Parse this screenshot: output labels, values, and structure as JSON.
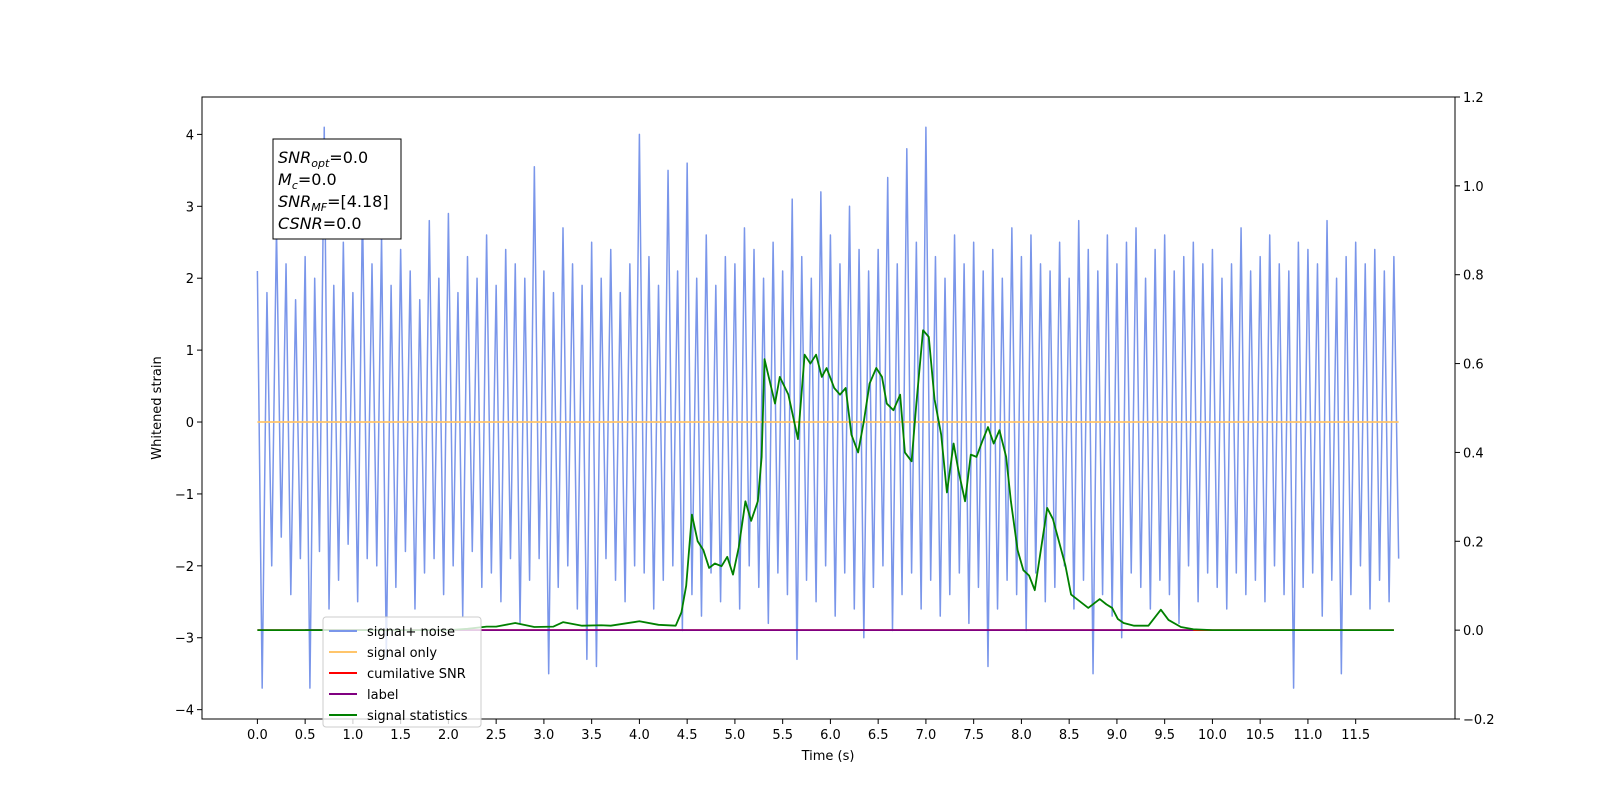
{
  "chart_data": {
    "type": "line",
    "xlabel": "Time (s)",
    "ylabel": "Whitened strain",
    "xlim": [
      -0.58,
      12.54
    ],
    "ylim": [
      -4.13,
      4.52
    ],
    "y2lim": [
      -0.2,
      1.2
    ],
    "xticks": [
      {
        "value": 0,
        "label": "0.0"
      },
      0.5,
      {
        "value": 1,
        "label": "1.0"
      },
      1.5,
      {
        "value": 2,
        "label": "2.0"
      },
      2.5,
      {
        "value": 3,
        "label": "3.0"
      },
      3.5,
      {
        "value": 4,
        "label": "4.0"
      },
      4.5,
      {
        "value": 5,
        "label": "5.0"
      },
      5.5,
      {
        "value": 6,
        "label": "6.0"
      },
      6.5,
      {
        "value": 7,
        "label": "7.0"
      },
      7.5,
      {
        "value": 8,
        "label": "8.0"
      },
      8.5,
      {
        "value": 9,
        "label": "9.0"
      },
      9.5,
      {
        "value": 10,
        "label": "10.0"
      },
      10.5,
      {
        "value": 11,
        "label": "11.0"
      },
      11.5
    ],
    "yticks": [
      {
        "value": -4,
        "label": "−4"
      },
      {
        "value": -3,
        "label": "−3"
      },
      {
        "value": -2,
        "label": "−2"
      },
      {
        "value": -1,
        "label": "−1"
      },
      0,
      1,
      2,
      3,
      4
    ],
    "y2ticks": [
      {
        "value": -0.2,
        "label": "−0.2"
      },
      {
        "value": 0,
        "label": "0.0"
      },
      0.2,
      0.4,
      0.6,
      0.8,
      {
        "value": 1,
        "label": "1.0"
      },
      1.2
    ],
    "legend": "lower left",
    "textbox": [
      {
        "base": "SNR",
        "sub": "opt",
        "rest": "=0.0"
      },
      {
        "base": "M",
        "sub": "c",
        "rest": "=0.0"
      },
      {
        "base": "SNR",
        "sub": "MF",
        "rest": "=[4.18]"
      },
      {
        "base": "CSNR",
        "rest": "=0.0"
      }
    ],
    "series": [
      {
        "name": "signal+ noise",
        "color": "#7a96ea",
        "x": [
          0,
          0.05,
          0.1,
          0.15,
          0.2,
          0.25,
          0.3,
          0.35,
          0.4,
          0.45,
          0.5,
          0.55,
          0.6,
          0.65,
          0.7,
          0.75,
          0.8,
          0.85,
          0.9,
          0.95,
          1,
          1.05,
          1.1,
          1.15,
          1.2,
          1.25,
          1.3,
          1.35,
          1.4,
          1.45,
          1.5,
          1.55,
          1.6,
          1.65,
          1.7,
          1.75,
          1.8,
          1.85,
          1.9,
          1.95,
          2,
          2.05,
          2.1,
          2.15,
          2.2,
          2.25,
          2.3,
          2.35,
          2.4,
          2.45,
          2.5,
          2.55,
          2.6,
          2.65,
          2.7,
          2.75,
          2.8,
          2.85,
          2.9,
          2.95,
          3,
          3.05,
          3.1,
          3.15,
          3.2,
          3.25,
          3.3,
          3.35,
          3.4,
          3.45,
          3.5,
          3.55,
          3.6,
          3.65,
          3.7,
          3.75,
          3.8,
          3.85,
          3.9,
          3.95,
          4,
          4.05,
          4.1,
          4.15,
          4.2,
          4.25,
          4.3,
          4.35,
          4.4,
          4.45,
          4.5,
          4.55,
          4.6,
          4.65,
          4.7,
          4.75,
          4.8,
          4.85,
          4.9,
          4.95,
          5,
          5.05,
          5.1,
          5.15,
          5.2,
          5.25,
          5.3,
          5.35,
          5.4,
          5.45,
          5.5,
          5.55,
          5.6,
          5.65,
          5.7,
          5.75,
          5.8,
          5.85,
          5.9,
          5.95,
          6,
          6.05,
          6.1,
          6.15,
          6.2,
          6.25,
          6.3,
          6.35,
          6.4,
          6.45,
          6.5,
          6.55,
          6.6,
          6.65,
          6.7,
          6.75,
          6.8,
          6.85,
          6.9,
          6.95,
          7,
          7.05,
          7.1,
          7.15,
          7.2,
          7.25,
          7.3,
          7.35,
          7.4,
          7.45,
          7.5,
          7.55,
          7.6,
          7.65,
          7.7,
          7.75,
          7.8,
          7.85,
          7.9,
          7.95,
          8,
          8.05,
          8.1,
          8.15,
          8.2,
          8.25,
          8.3,
          8.35,
          8.4,
          8.45,
          8.5,
          8.55,
          8.6,
          8.65,
          8.7,
          8.75,
          8.8,
          8.85,
          8.9,
          8.95,
          9,
          9.05,
          9.1,
          9.15,
          9.2,
          9.25,
          9.3,
          9.35,
          9.4,
          9.45,
          9.5,
          9.55,
          9.6,
          9.65,
          9.7,
          9.75,
          9.8,
          9.85,
          9.9,
          9.95,
          10,
          10.05,
          10.1,
          10.15,
          10.2,
          10.25,
          10.3,
          10.35,
          10.4,
          10.45,
          10.5,
          10.55,
          10.6,
          10.65,
          10.7,
          10.75,
          10.8,
          10.85,
          10.9,
          10.95,
          11,
          11.05,
          11.1,
          11.15,
          11.2,
          11.25,
          11.3,
          11.35,
          11.4,
          11.45,
          11.5,
          11.55,
          11.6,
          11.65,
          11.7,
          11.75,
          11.8,
          11.85,
          11.9,
          11.95
        ],
        "values": [
          2.1,
          -3.7,
          1.8,
          -2.0,
          2.7,
          -1.6,
          2.2,
          -2.4,
          1.7,
          -1.9,
          2.3,
          -3.7,
          2.0,
          -1.8,
          4.1,
          -2.6,
          1.9,
          -2.2,
          2.5,
          -1.7,
          1.8,
          -2.5,
          3.0,
          -1.9,
          2.2,
          -2.0,
          2.6,
          -3.3,
          1.9,
          -2.3,
          2.4,
          -1.8,
          2.1,
          -2.6,
          1.7,
          -2.1,
          2.8,
          -1.9,
          2.0,
          -2.4,
          2.9,
          -2.0,
          1.8,
          -2.7,
          2.3,
          -1.8,
          2.0,
          -2.3,
          2.6,
          -2.1,
          1.9,
          -2.5,
          2.4,
          -1.9,
          2.2,
          -2.8,
          2.0,
          -2.2,
          3.55,
          -1.9,
          2.1,
          -3.5,
          1.8,
          -2.3,
          2.7,
          -2.0,
          2.2,
          -2.6,
          1.9,
          -3.3,
          2.5,
          -3.4,
          2.0,
          -1.9,
          2.4,
          -2.2,
          1.8,
          -2.5,
          2.2,
          -2.0,
          4.0,
          -2.1,
          2.3,
          -2.6,
          1.9,
          -2.2,
          3.5,
          -2.0,
          2.1,
          -2.9,
          3.6,
          -2.4,
          2.0,
          -2.7,
          2.6,
          -2.1,
          1.9,
          -2.5,
          2.3,
          -2.0,
          2.2,
          -2.6,
          2.7,
          -2.0,
          2.4,
          -2.3,
          2.0,
          -2.8,
          2.5,
          -2.1,
          2.1,
          -2.4,
          3.1,
          -3.3,
          2.3,
          -2.2,
          2.0,
          -2.5,
          3.2,
          -2.0,
          2.6,
          -2.7,
          2.2,
          -2.1,
          3.0,
          -2.6,
          2.4,
          -3.0,
          2.1,
          -2.3,
          2.4,
          -2.0,
          3.4,
          -2.9,
          2.2,
          -2.4,
          3.8,
          -2.1,
          2.5,
          -2.6,
          4.1,
          -2.2,
          2.3,
          -2.7,
          2.0,
          -2.4,
          2.6,
          -2.1,
          2.2,
          -2.8,
          2.5,
          -2.3,
          2.1,
          -3.4,
          2.4,
          -2.6,
          2.0,
          -2.2,
          2.7,
          -2.4,
          2.3,
          -2.9,
          2.6,
          -2.1,
          2.2,
          -2.5,
          2.1,
          -2.3,
          2.5,
          -2.0,
          2.0,
          -2.6,
          2.8,
          -2.2,
          2.4,
          -3.5,
          2.1,
          -2.4,
          2.6,
          -2.7,
          2.2,
          -3.0,
          2.5,
          -2.1,
          2.7,
          -2.3,
          2.0,
          -2.6,
          2.4,
          -2.2,
          2.6,
          -2.4,
          2.1,
          -2.8,
          2.3,
          -2.0,
          2.5,
          -2.5,
          2.2,
          -2.1,
          2.4,
          -2.3,
          2.0,
          -2.6,
          2.2,
          -2.1,
          2.7,
          -2.4,
          2.1,
          -2.2,
          2.3,
          -2.5,
          2.6,
          -2.0,
          2.2,
          -2.4,
          2.1,
          -3.7,
          2.5,
          -2.3,
          2.4,
          -2.1,
          2.2,
          -2.7,
          2.8,
          -2.2,
          2.0,
          -3.5,
          2.3,
          -2.4,
          2.5,
          -2.0,
          2.2,
          -2.6,
          2.4,
          -2.2,
          2.1,
          -2.5,
          2.3,
          -1.9
        ]
      },
      {
        "name": "signal only",
        "color": "#ffc56b",
        "x": [
          0,
          11.95
        ],
        "values": [
          0,
          0
        ]
      },
      {
        "name": "cumilative SNR",
        "color": "#ff0000",
        "axis": "y2",
        "x": [
          0,
          11.9
        ],
        "values": [
          0,
          0
        ]
      },
      {
        "name": "label",
        "color": "#800080",
        "axis": "y2",
        "x": [
          0.5,
          9.8
        ],
        "values": [
          0,
          0
        ]
      },
      {
        "name": "signal statistics",
        "color": "#008000",
        "axis": "y2",
        "x": [
          0,
          0.5,
          2.0,
          2.2,
          2.4,
          2.5,
          2.7,
          2.9,
          3.1,
          3.2,
          3.4,
          3.6,
          3.7,
          4.0,
          4.2,
          4.38,
          4.44,
          4.49,
          4.55,
          4.61,
          4.67,
          4.73,
          4.79,
          4.86,
          4.92,
          4.98,
          5.04,
          5.11,
          5.17,
          5.24,
          5.28,
          5.31,
          5.42,
          5.47,
          5.56,
          5.66,
          5.73,
          5.79,
          5.85,
          5.91,
          5.96,
          6.04,
          6.1,
          6.16,
          6.22,
          6.29,
          6.35,
          6.41,
          6.48,
          6.54,
          6.59,
          6.66,
          6.73,
          6.78,
          6.85,
          6.9,
          6.97,
          7.03,
          7.09,
          7.16,
          7.22,
          7.29,
          7.34,
          7.41,
          7.47,
          7.53,
          7.59,
          7.65,
          7.71,
          7.77,
          7.84,
          7.89,
          7.96,
          8.02,
          8.08,
          8.14,
          8.27,
          8.33,
          8.46,
          8.52,
          8.7,
          8.82,
          8.89,
          8.95,
          9.01,
          9.07,
          9.18,
          9.33,
          9.46,
          9.54,
          9.67,
          9.8,
          10.0,
          11.9
        ],
        "values": [
          0,
          0,
          0,
          0.003,
          0.008,
          0.008,
          0.016,
          0.007,
          0.008,
          0.018,
          0.01,
          0.011,
          0.01,
          0.02,
          0.012,
          0.01,
          0.04,
          0.1,
          0.26,
          0.2,
          0.18,
          0.14,
          0.15,
          0.144,
          0.165,
          0.125,
          0.186,
          0.29,
          0.246,
          0.29,
          0.39,
          0.61,
          0.51,
          0.57,
          0.53,
          0.43,
          0.62,
          0.6,
          0.62,
          0.57,
          0.59,
          0.545,
          0.53,
          0.545,
          0.44,
          0.4,
          0.47,
          0.555,
          0.59,
          0.57,
          0.51,
          0.495,
          0.53,
          0.4,
          0.38,
          0.51,
          0.675,
          0.66,
          0.52,
          0.44,
          0.31,
          0.42,
          0.36,
          0.29,
          0.395,
          0.39,
          0.425,
          0.457,
          0.42,
          0.45,
          0.39,
          0.29,
          0.18,
          0.135,
          0.123,
          0.09,
          0.275,
          0.25,
          0.146,
          0.08,
          0.05,
          0.07,
          0.058,
          0.05,
          0.025,
          0.016,
          0.01,
          0.01,
          0.046,
          0.023,
          0.007,
          0.002,
          0,
          0
        ]
      }
    ]
  }
}
